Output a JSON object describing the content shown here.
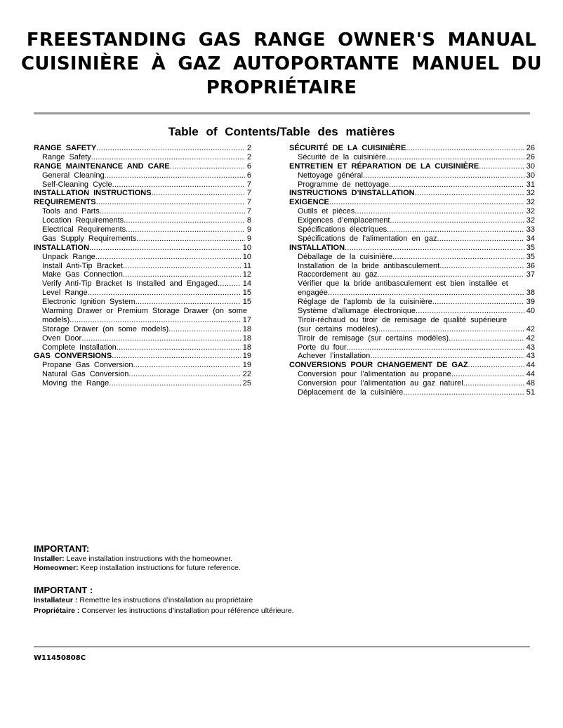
{
  "title": {
    "line1": "FREESTANDING GAS RANGE OWNER'S MANUAL",
    "line2": "CUISINIÈRE À GAZ AUTOPORTANTE MANUEL DU",
    "line3": "PROPRIÉTAIRE"
  },
  "toc_title": "Table of Contents/Table des matières",
  "toc_left": [
    {
      "text": "RANGE SAFETY",
      "page": "2",
      "level": 1
    },
    {
      "text": "Range Safety",
      "page": "2",
      "level": 2
    },
    {
      "text": "RANGE MAINTENANCE AND CARE",
      "page": "6",
      "level": 1
    },
    {
      "text": "General Cleaning",
      "page": "6",
      "level": 2
    },
    {
      "text": "Self-Cleaning Cycle",
      "page": "7",
      "level": 2
    },
    {
      "text": "INSTALLATION INSTRUCTIONS",
      "page": "7",
      "level": 1
    },
    {
      "text": "REQUIREMENTS",
      "page": "7",
      "level": 1
    },
    {
      "text": "Tools and Parts",
      "page": "7",
      "level": 2
    },
    {
      "text": "Location Requirements",
      "page": "8",
      "level": 2
    },
    {
      "text": "Electrical Requirements",
      "page": "9",
      "level": 2
    },
    {
      "text": "Gas Supply Requirements",
      "page": "9",
      "level": 2
    },
    {
      "text": "INSTALLATION",
      "page": "10",
      "level": 1
    },
    {
      "text": "Unpack Range",
      "page": "10",
      "level": 2
    },
    {
      "text": "Install Anti-Tip Bracket",
      "page": "11",
      "level": 2
    },
    {
      "text": "Make Gas Connection",
      "page": "12",
      "level": 2
    },
    {
      "text": "Verify Anti-Tip Bracket Is Installed and Engaged",
      "page": "14",
      "level": 2
    },
    {
      "text": "Level Range",
      "page": "15",
      "level": 2
    },
    {
      "text": "Electronic Ignition System",
      "page": "15",
      "level": 2
    },
    {
      "text": "Warming Drawer or Premium Storage Drawer (on some",
      "page": "",
      "level": 2
    },
    {
      "text": "models)",
      "page": "17",
      "level": 2
    },
    {
      "text": "Storage Drawer (on some models)",
      "page": "18",
      "level": 2
    },
    {
      "text": "Oven Door",
      "page": "18",
      "level": 2
    },
    {
      "text": "Complete Installation",
      "page": "18",
      "level": 2
    },
    {
      "text": "GAS CONVERSIONS",
      "page": "19",
      "level": 1
    },
    {
      "text": "Propane Gas Conversion",
      "page": "19",
      "level": 2
    },
    {
      "text": "Natural Gas Conversion",
      "page": "22",
      "level": 2
    },
    {
      "text": "Moving the Range",
      "page": "25",
      "level": 2
    }
  ],
  "toc_right": [
    {
      "text": "SÉCURITÉ DE LA CUISINIÈRE",
      "page": "26",
      "level": 1
    },
    {
      "text": "Sécurité de la cuisinière",
      "page": "26",
      "level": 2
    },
    {
      "text": "ENTRETIEN ET RÉPARATION DE LA CUISINIÈRE",
      "page": "30",
      "level": 1
    },
    {
      "text": "Nettoyage général",
      "page": "30",
      "level": 2
    },
    {
      "text": "Programme de nettoyage",
      "page": "31",
      "level": 2
    },
    {
      "text": "INSTRUCTIONS D’INSTALLATION",
      "page": "32",
      "level": 1
    },
    {
      "text": "EXIGENCE",
      "page": "32",
      "level": 1
    },
    {
      "text": "Outils et pièces",
      "page": "32",
      "level": 2
    },
    {
      "text": "Exigences d’emplacement",
      "page": "32",
      "level": 2
    },
    {
      "text": "Spécifications électriques",
      "page": "33",
      "level": 2
    },
    {
      "text": "Spécifications de l’alimentation en gaz",
      "page": "34",
      "level": 2
    },
    {
      "text": "INSTALLATION",
      "page": "35",
      "level": 1
    },
    {
      "text": "Déballage de la cuisinière",
      "page": "35",
      "level": 2
    },
    {
      "text": "Installation de la bride antibasculement",
      "page": "36",
      "level": 2
    },
    {
      "text": "Raccordement au gaz",
      "page": "37",
      "level": 2
    },
    {
      "text": "Vérifier que la bride antibasculement est bien installée et",
      "page": "",
      "level": 2
    },
    {
      "text": "engagée",
      "page": "38",
      "level": 2
    },
    {
      "text": "Réglage de l’aplomb de la cuisinière",
      "page": "39",
      "level": 2
    },
    {
      "text": "Système d’allumage électronique",
      "page": "40",
      "level": 2
    },
    {
      "text": "Tiroir-réchaud ou tiroir de remisage de qualité supérieure",
      "page": "",
      "level": 2
    },
    {
      "text": "(sur certains modèles)",
      "page": "42",
      "level": 2
    },
    {
      "text": "Tiroir de remisage (sur certains modèles)",
      "page": "42",
      "level": 2
    },
    {
      "text": "Porte du four",
      "page": "43",
      "level": 2
    },
    {
      "text": "Achever l’installation",
      "page": "43",
      "level": 2
    },
    {
      "text": "CONVERSIONS POUR CHANGEMENT DE GAZ",
      "page": "44",
      "level": 1
    },
    {
      "text": "Conversion pour l’alimentation au propane",
      "page": "44",
      "level": 2
    },
    {
      "text": "Conversion pour l’alimentation au gaz naturel",
      "page": "48",
      "level": 2
    },
    {
      "text": "Déplacement de la cuisinière",
      "page": "51",
      "level": 2
    }
  ],
  "important_en": {
    "heading": "IMPORTANT:",
    "installer_label": "Installer:",
    "installer_text": " Leave installation instructions with the homeowner.",
    "homeowner_label": "Homeowner:",
    "homeowner_text": " Keep installation instructions for future reference."
  },
  "important_fr": {
    "heading": "IMPORTANT :",
    "installer_label": "Installateur :",
    "installer_text": " Remettre les instructions d’installation au propriétaire",
    "owner_label": "Propriétaire :",
    "owner_text": " Conserver les instructions d’installation pour référence ultérieure."
  },
  "doc_number": "W11450808C"
}
